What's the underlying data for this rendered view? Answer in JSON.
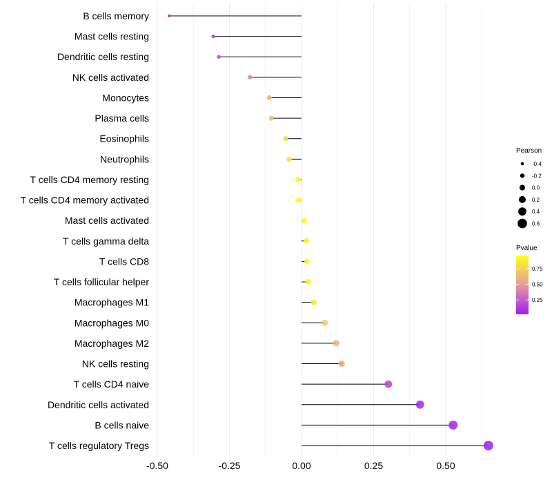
{
  "chart_data": {
    "type": "lollipop",
    "title": "",
    "xlabel": "",
    "ylabel": "",
    "xlim": [
      -0.52,
      0.67
    ],
    "x_ticks": [
      -0.5,
      -0.25,
      0.0,
      0.25,
      0.5
    ],
    "x_tick_labels": [
      "-0.50",
      "-0.25",
      "0.00",
      "0.25",
      "0.50"
    ],
    "grid": true,
    "categories": [
      "B cells memory",
      "Mast cells resting",
      "Dendritic cells resting",
      "NK cells activated",
      "Monocytes",
      "Plasma cells",
      "Eosinophils",
      "Neutrophils",
      "T cells CD4 memory resting",
      "T cells CD4 memory activated",
      "Mast cells activated",
      "T cells gamma delta",
      "T cells CD8",
      "T cells follicular helper",
      "Macrophages M1",
      "Macrophages M0",
      "Macrophages M2",
      "NK cells resting",
      "T cells CD4 naive",
      "Dendritic cells activated",
      "B cells naive",
      "T cells regulatory  Tregs"
    ],
    "pearson": [
      -0.459,
      -0.306,
      -0.287,
      -0.179,
      -0.112,
      -0.105,
      -0.055,
      -0.043,
      -0.012,
      -0.01,
      0.01,
      0.017,
      0.019,
      0.024,
      0.043,
      0.081,
      0.12,
      0.139,
      0.301,
      0.411,
      0.526,
      0.648
    ],
    "pvalue": [
      0.02,
      0.17,
      0.2,
      0.42,
      0.62,
      0.64,
      0.82,
      0.85,
      0.95,
      0.94,
      0.95,
      0.93,
      0.94,
      0.92,
      0.86,
      0.7,
      0.6,
      0.56,
      0.17,
      0.05,
      0.03,
      0.01
    ],
    "legend": {
      "size": {
        "title": "Pearson",
        "values": [
          -0.4,
          -0.2,
          0.0,
          0.2,
          0.4,
          0.6
        ],
        "labels": [
          "-0.4",
          "-0.2",
          "0.0",
          "0.2",
          "0.4",
          "0.6"
        ]
      },
      "color": {
        "title": "Pvalue",
        "range": [
          0.02,
          0.96
        ],
        "ticks": [
          0.75,
          0.5,
          0.25
        ],
        "labels": [
          "0.75",
          "0.50",
          "0.25"
        ],
        "low_color": "#a020f0",
        "mid_color": "#e79a9a",
        "high_color": "#ffff1a"
      },
      "placement": "right"
    }
  }
}
